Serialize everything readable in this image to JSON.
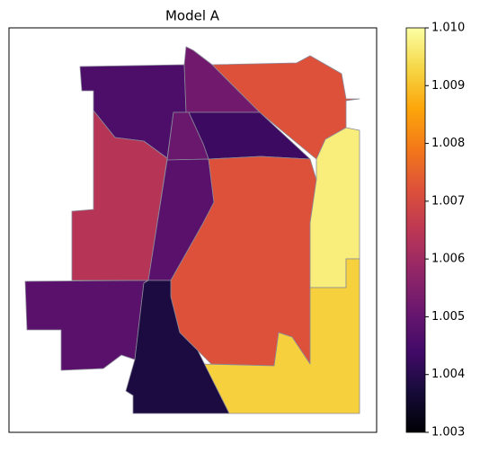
{
  "chart_data": {
    "type": "choropleth",
    "title": "Model A",
    "colormap": "inferno",
    "values": [
      1.0046,
      1.0052,
      1.0072,
      1.0043,
      1.0051,
      1.0064,
      1.0048,
      1.0072,
      1.0097,
      1.0092,
      1.0048,
      1.0038
    ],
    "clim": [
      1.003,
      1.01
    ],
    "cticks": [
      1.003,
      1.004,
      1.005,
      1.006,
      1.007,
      1.008,
      1.009,
      {
        "value": 1.01,
        "label": "1.010"
      }
    ]
  }
}
